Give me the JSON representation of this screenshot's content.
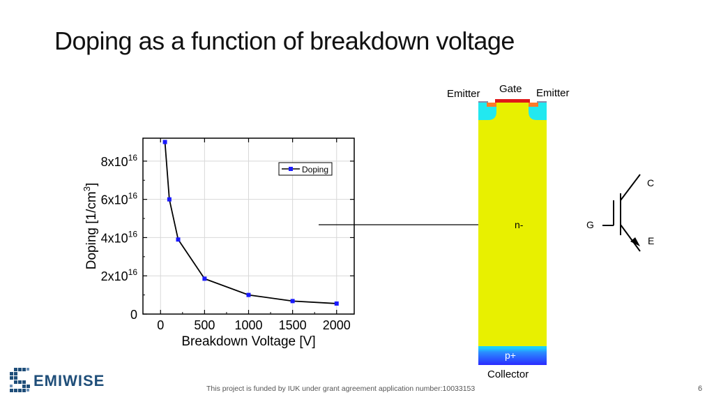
{
  "slide": {
    "title": "Doping as a function of breakdown voltage",
    "footer": "This project is funded by IUK under grant agreement application number:10033153",
    "page_number": "6",
    "logo_text": "EMIWISE"
  },
  "device": {
    "gate_label": "Gate",
    "emitter_left_label": "Emitter",
    "emitter_right_label": "Emitter",
    "drift_label": "n-",
    "collector_region_label": "p+",
    "collector_label": "Collector",
    "colors": {
      "drift": "#e8f000",
      "collector": "#3b3cf0",
      "gate": "#e01818"
    }
  },
  "symbol": {
    "c_label": "C",
    "g_label": "G",
    "e_label": "E"
  },
  "chart_data": {
    "type": "line",
    "xlabel": "Breakdown Voltage [V]",
    "ylabel_base": "Doping [1/cm",
    "ylabel_sup": "3",
    "ylabel_end": "]",
    "xlim": [
      -200,
      2200
    ],
    "ylim": [
      0,
      9.2e+16
    ],
    "x_ticks": [
      {
        "value": 0,
        "label": "0"
      },
      {
        "value": 500,
        "label": "500"
      },
      {
        "value": 1000,
        "label": "1000"
      },
      {
        "value": 1500,
        "label": "1500"
      },
      {
        "value": 2000,
        "label": "2000"
      }
    ],
    "y_ticks": [
      {
        "value": 0,
        "base": "0",
        "exp": ""
      },
      {
        "value": 2e+16,
        "base": "2x10",
        "exp": "16"
      },
      {
        "value": 4e+16,
        "base": "4x10",
        "exp": "16"
      },
      {
        "value": 6e+16,
        "base": "6x10",
        "exp": "16"
      },
      {
        "value": 8e+16,
        "base": "8x10",
        "exp": "16"
      }
    ],
    "grid": true,
    "legend_placement": "top-right",
    "series": [
      {
        "name": "Doping",
        "color": "#1a1aff",
        "x": [
          50,
          100,
          200,
          500,
          1000,
          1500,
          2000
        ],
        "y": [
          9e+16,
          6e+16,
          3.9e+16,
          1.85e+16,
          1e+16,
          6800000000000000.0,
          5500000000000000.0
        ]
      }
    ]
  }
}
